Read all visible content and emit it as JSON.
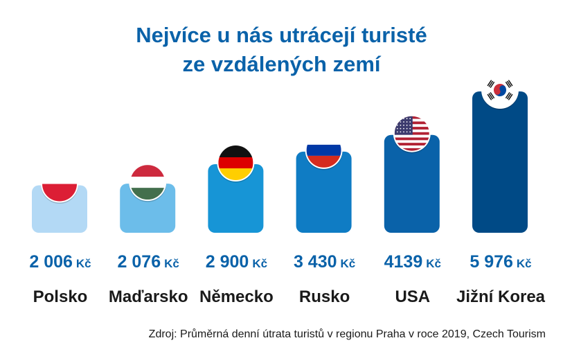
{
  "title_line1": "Nejvíce u nás utrácejí turisté",
  "title_line2": "ze vzdálených zemí",
  "source": "Zdroj: Průměrná denní útrata turistů v regionu Praha v roce 2019, Czech Tourism",
  "chart_data": {
    "type": "bar",
    "title": "Nejvíce u nás utrácejí turisté ze vzdálených zemí",
    "categories": [
      "Polsko",
      "Maďarsko",
      "Německo",
      "Rusko",
      "USA",
      "Jižní Korea"
    ],
    "values": [
      2006,
      2076,
      2900,
      3430,
      4139,
      5976
    ],
    "value_labels": [
      "2 006",
      "2 076",
      "2 900",
      "3 430",
      "4139",
      "5 976"
    ],
    "unit": "Kč",
    "colors": [
      "#b3d9f5",
      "#6cbdea",
      "#1795d6",
      "#0f7cc4",
      "#0a62a9",
      "#004a86"
    ],
    "flags": [
      "flag-poland-icon",
      "flag-hungary-icon",
      "flag-germany-icon",
      "flag-russia-icon",
      "flag-usa-icon",
      "flag-south-korea-icon"
    ]
  }
}
